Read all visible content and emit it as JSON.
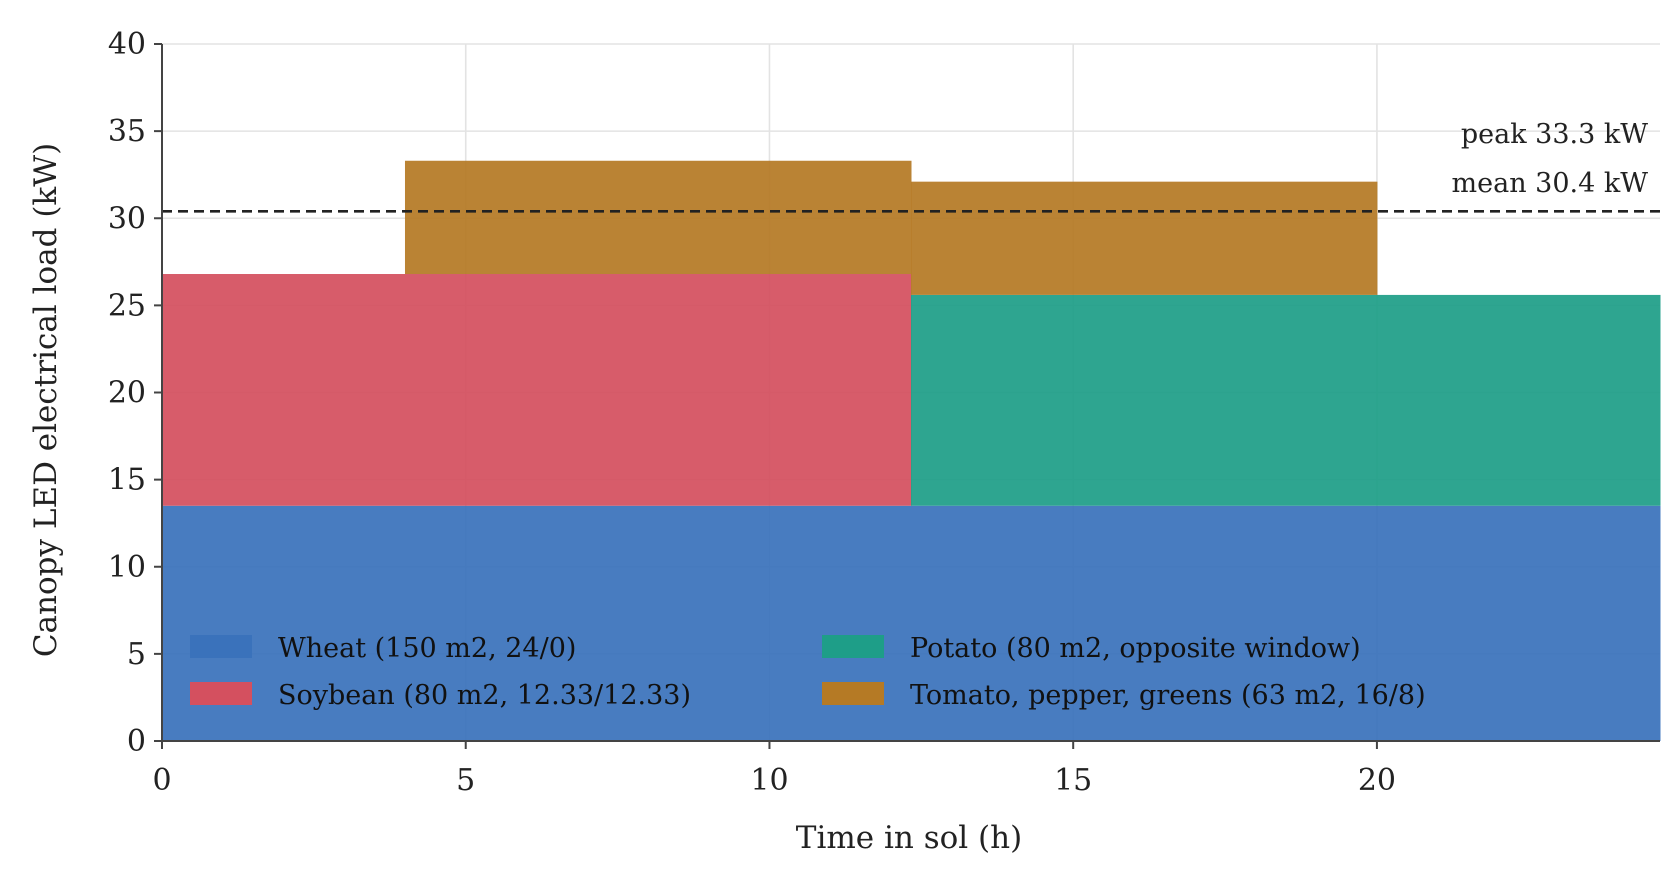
{
  "chart_data": {
    "type": "area",
    "stacked": true,
    "xlabel": "Time in sol (h)",
    "ylabel": "Canopy LED electrical load (kW)",
    "xlim": [
      0,
      24.66
    ],
    "ylim": [
      0,
      40
    ],
    "xticks": [
      0,
      5,
      10,
      15,
      20
    ],
    "yticks": [
      0,
      5,
      10,
      15,
      20,
      25,
      30,
      35,
      40
    ],
    "grid": true,
    "legend_position": "lower-left, 2 columns",
    "series": [
      {
        "name": "Wheat (150 m2, 24/0)",
        "color": "#3a72bb",
        "segments": [
          {
            "x0": 0,
            "x1": 24.66,
            "value": 13.5
          }
        ]
      },
      {
        "name": "Soybean (80 m2, 12.33/12.33)",
        "color": "#d4505f",
        "segments": [
          {
            "x0": 0,
            "x1": 12.33,
            "value": 13.3
          }
        ]
      },
      {
        "name": "Potato (80 m2, opposite window)",
        "color": "#1e9e88",
        "segments": [
          {
            "x0": 12.33,
            "x1": 24.66,
            "value": 12.1
          }
        ]
      },
      {
        "name": "Tomato, pepper, greens (63 m2, 16/8)",
        "color": "#b57a25",
        "segments": [
          {
            "x0": 4,
            "x1": 20,
            "value": 6.5
          }
        ]
      }
    ],
    "reference_lines": [
      {
        "y": 30.4,
        "style": "dashed",
        "color": "#222222"
      }
    ],
    "annotations": [
      {
        "text": "peak 33.3 kW"
      },
      {
        "text": "mean 30.4 kW"
      }
    ]
  }
}
